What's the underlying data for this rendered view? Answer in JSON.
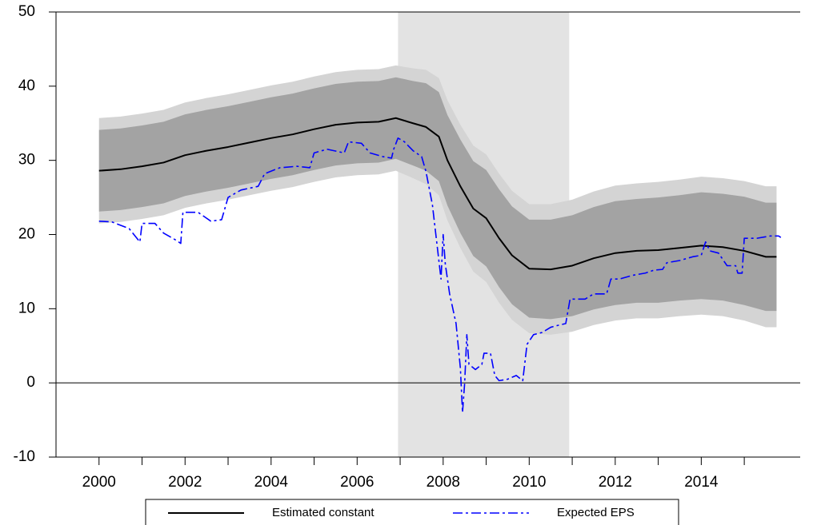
{
  "chart_data": {
    "type": "line",
    "xlim": [
      1999,
      2016.3
    ],
    "ylim": [
      -10,
      50
    ],
    "yticks": [
      -10,
      0,
      10,
      20,
      30,
      40,
      50
    ],
    "xticks": [
      2000,
      2002,
      2004,
      2006,
      2008,
      2010,
      2012,
      2014
    ],
    "x_minor_ticks": [
      2001,
      2003,
      2005,
      2007,
      2009,
      2011,
      2013,
      2015
    ],
    "shaded_region": [
      2006.95,
      2010.93
    ],
    "shade_color": "#e3e3e3",
    "zero_line": true,
    "legend": "bottom",
    "series": [
      {
        "name": "Estimated constant",
        "color": "#000000",
        "dash": "solid",
        "x": [
          2000,
          2000.5,
          2001,
          2001.5,
          2002,
          2002.5,
          2003,
          2003.5,
          2004,
          2004.5,
          2005,
          2005.5,
          2006,
          2006.5,
          2006.9,
          2007.3,
          2007.6,
          2007.9,
          2008.1,
          2008.4,
          2008.7,
          2009,
          2009.3,
          2009.6,
          2010,
          2010.5,
          2011,
          2011.5,
          2012,
          2012.5,
          2013,
          2013.5,
          2014,
          2014.5,
          2015,
          2015.5,
          2015.75
        ],
        "values": [
          28.6,
          28.8,
          29.2,
          29.7,
          30.7,
          31.3,
          31.8,
          32.4,
          33.0,
          33.5,
          34.2,
          34.8,
          35.1,
          35.2,
          35.7,
          35.0,
          34.5,
          33.2,
          30.0,
          26.5,
          23.5,
          22.2,
          19.5,
          17.2,
          15.4,
          15.3,
          15.8,
          16.8,
          17.5,
          17.8,
          17.9,
          18.2,
          18.5,
          18.3,
          17.8,
          17.0,
          17.0
        ],
        "bands": [
          {
            "color": "#d4d4d4",
            "lower": [
              21.5,
              21.7,
              22.1,
              22.6,
              23.6,
              24.2,
              24.7,
              25.3,
              25.9,
              26.4,
              27.1,
              27.7,
              28.0,
              28.1,
              28.6,
              27.6,
              26.8,
              25.3,
              21.9,
              18.2,
              15.0,
              13.6,
              10.8,
              8.5,
              6.7,
              6.5,
              6.9,
              7.8,
              8.4,
              8.7,
              8.7,
              9.0,
              9.2,
              9.0,
              8.4,
              7.5,
              7.5
            ],
            "upper": [
              35.7,
              35.9,
              36.3,
              36.8,
              37.8,
              38.4,
              38.9,
              39.5,
              40.1,
              40.6,
              41.3,
              41.9,
              42.2,
              42.3,
              42.8,
              42.4,
              42.2,
              41.1,
              38.1,
              34.8,
              32.0,
              30.8,
              28.2,
              25.9,
              24.1,
              24.1,
              24.7,
              25.8,
              26.6,
              26.9,
              27.1,
              27.4,
              27.8,
              27.6,
              27.2,
              26.5,
              26.5
            ]
          },
          {
            "color": "#a3a3a3",
            "lower": [
              23.1,
              23.3,
              23.7,
              24.2,
              25.2,
              25.8,
              26.3,
              26.9,
              27.5,
              28.0,
              28.7,
              29.3,
              29.6,
              29.7,
              30.2,
              29.3,
              28.6,
              27.2,
              23.9,
              20.2,
              17.1,
              15.7,
              12.9,
              10.6,
              8.8,
              8.6,
              9.0,
              9.9,
              10.5,
              10.8,
              10.8,
              11.1,
              11.3,
              11.1,
              10.5,
              9.7,
              9.7
            ],
            "upper": [
              34.1,
              34.3,
              34.7,
              35.2,
              36.2,
              36.8,
              37.3,
              37.9,
              38.5,
              39.0,
              39.7,
              40.3,
              40.6,
              40.7,
              41.2,
              40.7,
              40.4,
              39.2,
              36.1,
              32.8,
              29.9,
              28.7,
              26.1,
              23.8,
              22.0,
              22.0,
              22.6,
              23.7,
              24.5,
              24.8,
              25.0,
              25.3,
              25.7,
              25.5,
              25.1,
              24.3,
              24.3
            ]
          }
        ]
      },
      {
        "name": "Expected EPS",
        "color": "#0000ff",
        "dash": "dash-dot",
        "x": [
          2000,
          2000.3,
          2000.7,
          2000.95,
          2001.0,
          2001.3,
          2001.5,
          2001.8,
          2001.9,
          2001.95,
          2002.3,
          2002.6,
          2002.85,
          2003.0,
          2003.3,
          2003.7,
          2003.85,
          2004.2,
          2004.6,
          2004.9,
          2005.0,
          2005.3,
          2005.7,
          2005.8,
          2006.1,
          2006.3,
          2006.6,
          2006.8,
          2006.85,
          2006.95,
          2007.1,
          2007.3,
          2007.5,
          2007.6,
          2007.75,
          2007.85,
          2007.95,
          2008.0,
          2008.05,
          2008.15,
          2008.3,
          2008.4,
          2008.45,
          2008.5,
          2008.55,
          2008.6,
          2008.75,
          2008.9,
          2008.95,
          2009.1,
          2009.2,
          2009.3,
          2009.5,
          2009.7,
          2009.85,
          2009.95,
          2010.1,
          2010.3,
          2010.5,
          2010.7,
          2010.85,
          2010.95,
          2011.3,
          2011.5,
          2011.8,
          2011.9,
          2012.1,
          2012.4,
          2012.7,
          2012.9,
          2013.1,
          2013.2,
          2013.5,
          2013.8,
          2014.0,
          2014.1,
          2014.2,
          2014.4,
          2014.6,
          2014.8,
          2014.85,
          2014.95,
          2015.0,
          2015.3,
          2015.6,
          2015.8,
          2015.85
        ],
        "values": [
          21.8,
          21.7,
          20.8,
          19.0,
          21.5,
          21.5,
          20.2,
          19.2,
          18.8,
          23.0,
          23.0,
          21.8,
          22.0,
          25.0,
          26.0,
          26.5,
          28.2,
          29.0,
          29.2,
          29.0,
          31.0,
          31.5,
          31.0,
          32.5,
          32.3,
          31.0,
          30.5,
          30.3,
          31.5,
          33.0,
          32.5,
          31.3,
          30.5,
          28.5,
          24.0,
          19.0,
          14.0,
          20.0,
          16.0,
          12.0,
          8.0,
          2.0,
          -4.0,
          0.0,
          6.5,
          2.5,
          1.8,
          2.5,
          4.0,
          4.0,
          1.0,
          0.3,
          0.5,
          1.0,
          0.3,
          5.2,
          6.5,
          6.8,
          7.5,
          7.8,
          8.0,
          11.3,
          11.3,
          12.0,
          12.0,
          14.0,
          14.0,
          14.5,
          14.8,
          15.2,
          15.3,
          16.2,
          16.5,
          17.0,
          17.2,
          19.0,
          17.8,
          17.5,
          15.8,
          15.8,
          14.8,
          14.8,
          19.5,
          19.5,
          19.8,
          19.8,
          19.6
        ]
      }
    ]
  }
}
